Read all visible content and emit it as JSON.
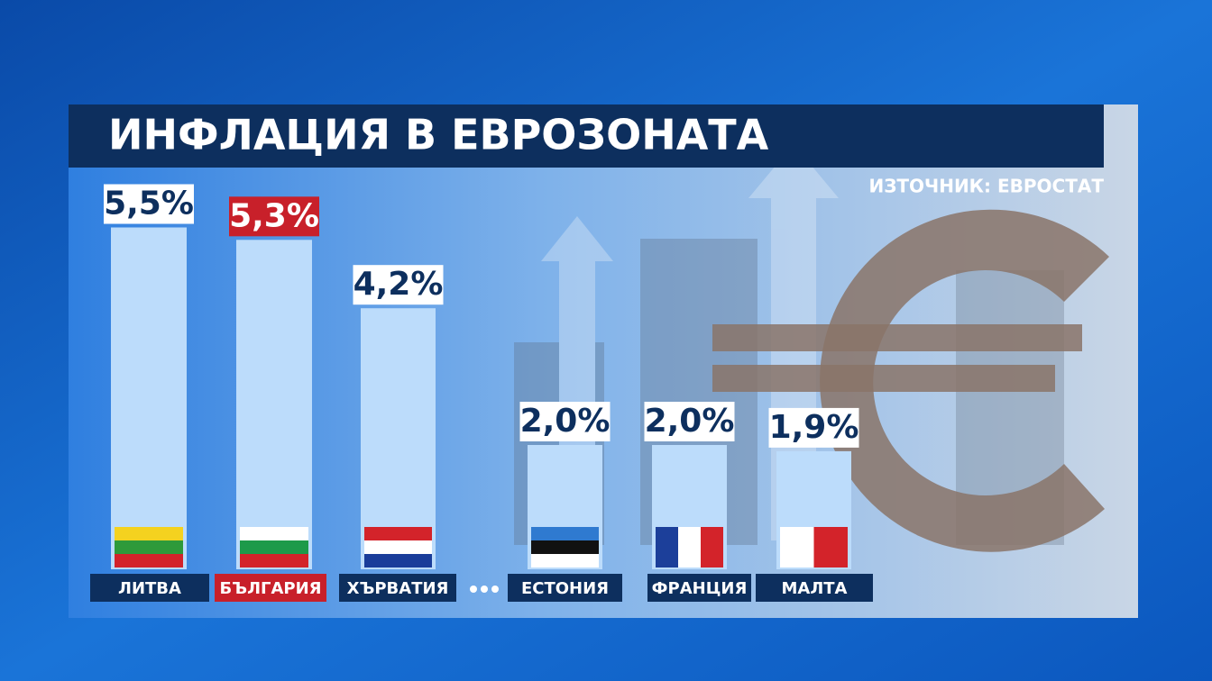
{
  "chart_data": {
    "type": "bar",
    "title": "ИНФЛАЦИЯ В ЕВРОЗОНАТА",
    "source": "ИЗТОЧНИК: ЕВРОСТАТ",
    "categories": [
      "ЛИТВА",
      "БЪЛГАРИЯ",
      "ХЪРВАТИЯ",
      "ЕСТОНИЯ",
      "ФРАНЦИЯ",
      "МАЛТА"
    ],
    "values": [
      5.5,
      5.3,
      4.2,
      2.0,
      2.0,
      1.9
    ],
    "value_labels": [
      "5,5%",
      "5,3%",
      "4,2%",
      "2,0%",
      "2,0%",
      "1,9%"
    ],
    "color": "#bcdcfb",
    "label_colors": [
      "#0d2f5e",
      "#c8202a",
      "#0d2f5e",
      "#0d2f5e",
      "#0d2f5e",
      "#0d2f5e"
    ]
  }
}
